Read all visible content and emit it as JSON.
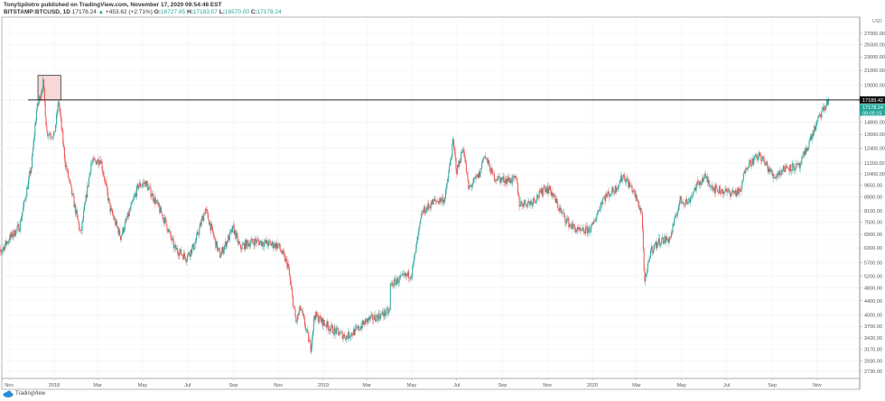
{
  "header": {
    "publisher_line": "TonySpilotro published on TradingView.com, November 17, 2020 09:54:48 EST",
    "symbol": "BITSTAMP:BTCUSD, 1D",
    "last": "17178.24",
    "change": "+453.62 (+2.71%)",
    "o_label": "O:",
    "o": "16727.85",
    "h_label": "H:",
    "h": "17183.57",
    "l_label": "L:",
    "l": "16570.00",
    "c_label": "C:",
    "c": "17178.24"
  },
  "footer": {
    "brand": "TradingView"
  },
  "colors": {
    "up": "#26a69a",
    "down": "#ef5350",
    "highlight_fill": "#f8d7d7",
    "line": "#222222",
    "axis": "#888888"
  },
  "chart_data": {
    "type": "candlestick",
    "y_scale": "log",
    "currency": "USD",
    "ylim": [
      2650,
      29500
    ],
    "grid": true,
    "y_ticks": [
      "27000.00",
      "25000.00",
      "23000.00",
      "21000.00",
      "19000.00",
      "14800.00",
      "13600.00",
      "12400.00",
      "11200.00",
      "10400.00",
      "9650.00",
      "8900.00",
      "8100.00",
      "7500.00",
      "6900.00",
      "6300.00",
      "5700.00",
      "5200.00",
      "4800.00",
      "4400.00",
      "4000.00",
      "3700.00",
      "3420.00",
      "3170.00",
      "2930.00",
      "2730.00"
    ],
    "x_ticks": [
      {
        "date": "2017-11-01",
        "label": "Nov"
      },
      {
        "date": "2018-01-01",
        "label": "2018"
      },
      {
        "date": "2018-03-01",
        "label": "Mar"
      },
      {
        "date": "2018-05-01",
        "label": "May"
      },
      {
        "date": "2018-07-01",
        "label": "Jul"
      },
      {
        "date": "2018-09-01",
        "label": "Sep"
      },
      {
        "date": "2018-11-01",
        "label": "Nov"
      },
      {
        "date": "2019-01-01",
        "label": "2019"
      },
      {
        "date": "2019-03-01",
        "label": "Mar"
      },
      {
        "date": "2019-05-01",
        "label": "May"
      },
      {
        "date": "2019-07-01",
        "label": "Jul"
      },
      {
        "date": "2019-09-01",
        "label": "Sep"
      },
      {
        "date": "2019-11-01",
        "label": "Nov"
      },
      {
        "date": "2020-01-01",
        "label": "2020"
      },
      {
        "date": "2020-03-01",
        "label": "Mar"
      },
      {
        "date": "2020-05-01",
        "label": "May"
      },
      {
        "date": "2020-07-01",
        "label": "Jul"
      },
      {
        "date": "2020-09-01",
        "label": "Sep"
      },
      {
        "date": "2020-11-01",
        "label": "Nov"
      }
    ],
    "price_path": [
      [
        "2017-10-10",
        5700
      ],
      [
        "2017-11-01",
        6700
      ],
      [
        "2017-11-15",
        7300
      ],
      [
        "2017-12-01",
        10900
      ],
      [
        "2017-12-08",
        16000
      ],
      [
        "2017-12-17",
        19300
      ],
      [
        "2017-12-22",
        13800
      ],
      [
        "2018-01-01",
        13500
      ],
      [
        "2018-01-07",
        17100
      ],
      [
        "2018-01-16",
        11200
      ],
      [
        "2018-02-06",
        6900
      ],
      [
        "2018-02-20",
        11200
      ],
      [
        "2018-03-05",
        11500
      ],
      [
        "2018-03-18",
        8200
      ],
      [
        "2018-04-01",
        6800
      ],
      [
        "2018-04-12",
        7900
      ],
      [
        "2018-04-25",
        9600
      ],
      [
        "2018-05-05",
        9800
      ],
      [
        "2018-05-20",
        8500
      ],
      [
        "2018-06-01",
        7500
      ],
      [
        "2018-06-13",
        6300
      ],
      [
        "2018-06-29",
        5900
      ],
      [
        "2018-07-10",
        6400
      ],
      [
        "2018-07-25",
        8200
      ],
      [
        "2018-08-10",
        6300
      ],
      [
        "2018-08-14",
        6000
      ],
      [
        "2018-09-01",
        7200
      ],
      [
        "2018-09-10",
        6300
      ],
      [
        "2018-09-20",
        6500
      ],
      [
        "2018-10-01",
        6600
      ],
      [
        "2018-10-15",
        6500
      ],
      [
        "2018-11-01",
        6400
      ],
      [
        "2018-11-14",
        5600
      ],
      [
        "2018-11-20",
        4500
      ],
      [
        "2018-11-25",
        3800
      ],
      [
        "2018-12-01",
        4200
      ],
      [
        "2018-12-15",
        3200
      ],
      [
        "2018-12-20",
        4000
      ],
      [
        "2019-01-01",
        3800
      ],
      [
        "2019-01-15",
        3600
      ],
      [
        "2019-02-01",
        3450
      ],
      [
        "2019-02-15",
        3600
      ],
      [
        "2019-03-01",
        3850
      ],
      [
        "2019-03-15",
        3950
      ],
      [
        "2019-04-01",
        4100
      ],
      [
        "2019-04-02",
        4900
      ],
      [
        "2019-04-15",
        5100
      ],
      [
        "2019-05-01",
        5300
      ],
      [
        "2019-05-15",
        8000
      ],
      [
        "2019-05-30",
        8600
      ],
      [
        "2019-06-15",
        8800
      ],
      [
        "2019-06-26",
        12900
      ],
      [
        "2019-07-01",
        10600
      ],
      [
        "2019-07-10",
        12500
      ],
      [
        "2019-07-17",
        9400
      ],
      [
        "2019-08-01",
        10400
      ],
      [
        "2019-08-07",
        11900
      ],
      [
        "2019-08-20",
        10200
      ],
      [
        "2019-09-01",
        10000
      ],
      [
        "2019-09-20",
        10000
      ],
      [
        "2019-09-24",
        8500
      ],
      [
        "2019-10-10",
        8600
      ],
      [
        "2019-10-25",
        9200
      ],
      [
        "2019-10-26",
        9550
      ],
      [
        "2019-11-05",
        9300
      ],
      [
        "2019-11-20",
        8000
      ],
      [
        "2019-12-01",
        7400
      ],
      [
        "2019-12-15",
        7000
      ],
      [
        "2019-12-31",
        7200
      ],
      [
        "2020-01-15",
        8800
      ],
      [
        "2020-02-01",
        9400
      ],
      [
        "2020-02-12",
        10300
      ],
      [
        "2020-02-25",
        9300
      ],
      [
        "2020-03-08",
        8000
      ],
      [
        "2020-03-12",
        4900
      ],
      [
        "2020-03-20",
        6200
      ],
      [
        "2020-04-01",
        6600
      ],
      [
        "2020-04-15",
        6700
      ],
      [
        "2020-04-29",
        8700
      ],
      [
        "2020-05-10",
        8600
      ],
      [
        "2020-05-20",
        9500
      ],
      [
        "2020-06-01",
        10200
      ],
      [
        "2020-06-15",
        9400
      ],
      [
        "2020-07-01",
        9200
      ],
      [
        "2020-07-20",
        9200
      ],
      [
        "2020-07-27",
        11000
      ],
      [
        "2020-08-15",
        11800
      ],
      [
        "2020-09-03",
        10200
      ],
      [
        "2020-09-20",
        10900
      ],
      [
        "2020-10-08",
        10900
      ],
      [
        "2020-10-21",
        12900
      ],
      [
        "2020-11-05",
        15500
      ],
      [
        "2020-11-17",
        17178.24
      ]
    ],
    "horizontal_line": {
      "price": 17189.42,
      "label": "17189.42"
    },
    "last_price_label": "17178.24",
    "countdown_label": "09:05:15",
    "highlight_box": {
      "from": "2017-12-10",
      "to": "2018-01-10",
      "price_low": 17189.42,
      "price_high": 20300
    }
  }
}
